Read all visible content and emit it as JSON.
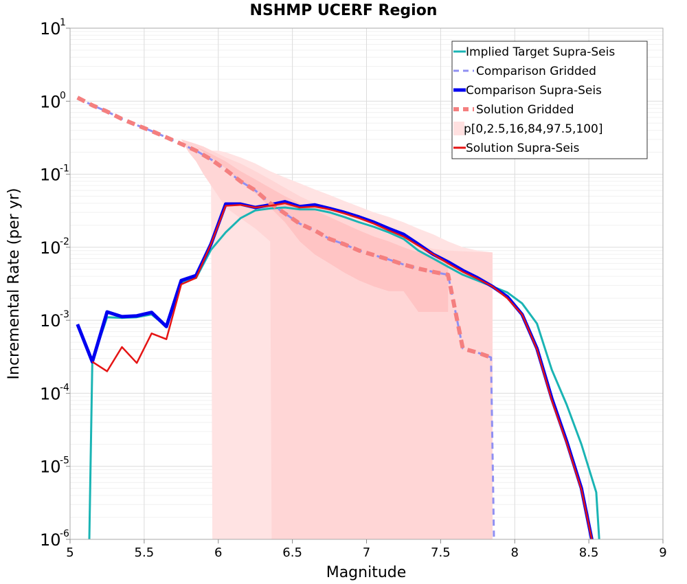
{
  "chart_data": {
    "type": "line",
    "title": "NSHMP UCERF Region",
    "xlabel": "Magnitude",
    "ylabel": "Incremental Rate (per yr)",
    "xlim": [
      5,
      9
    ],
    "ylim": [
      1e-06,
      10
    ],
    "yscale": "log",
    "grid": true,
    "legend_position": "top-right",
    "xticks": [
      5,
      5.5,
      6,
      6.5,
      7,
      7.5,
      8,
      8.5,
      9
    ],
    "xtick_labels": [
      "5",
      "5.5",
      "6",
      "6.5",
      "7",
      "7.5",
      "8",
      "8.5",
      "9"
    ],
    "yticks": [
      {
        "value": 1e-06,
        "base": "10",
        "exp": "-6"
      },
      {
        "value": 1e-05,
        "base": "10",
        "exp": "-5"
      },
      {
        "value": 0.0001,
        "base": "10",
        "exp": "-4"
      },
      {
        "value": 0.001,
        "base": "10",
        "exp": "-3"
      },
      {
        "value": 0.01,
        "base": "10",
        "exp": "-2"
      },
      {
        "value": 0.1,
        "base": "10",
        "exp": "-1"
      },
      {
        "value": 1,
        "base": "10",
        "exp": "0"
      },
      {
        "value": 10,
        "base": "10",
        "exp": "1"
      }
    ],
    "bands": [
      {
        "name": "p[0,2.5,16,84,97.5,100]",
        "level": "outer",
        "color": "#ffe3e3",
        "x": [
          5.05,
          5.15,
          5.25,
          5.35,
          5.45,
          5.55,
          5.65,
          5.75,
          5.85,
          5.95,
          5.96,
          6.0,
          6.05,
          6.15,
          6.25,
          6.35,
          6.45,
          6.55,
          6.65,
          6.75,
          6.85,
          6.95,
          7.05,
          7.15,
          7.25,
          7.35,
          7.45,
          7.55,
          7.65,
          7.75,
          7.85
        ],
        "upper": [
          1.12,
          0.93,
          0.75,
          0.6,
          0.5,
          0.42,
          0.35,
          0.3,
          0.25,
          0.21,
          0.21,
          0.21,
          0.2,
          0.17,
          0.14,
          0.11,
          0.09,
          0.075,
          0.062,
          0.052,
          0.043,
          0.036,
          0.03,
          0.026,
          0.022,
          0.018,
          0.015,
          0.012,
          0.01,
          0.009,
          0.0085
        ],
        "lower": [
          1.12,
          0.93,
          0.75,
          0.6,
          0.5,
          0.42,
          0.35,
          0.3,
          0.25,
          0.19,
          1e-06,
          1e-06,
          1e-06,
          1e-06,
          1e-06,
          1e-06,
          1e-06,
          1e-06,
          1e-06,
          1e-06,
          1e-06,
          1e-06,
          1e-06,
          1e-06,
          1e-06,
          1e-06,
          1e-06,
          1e-06,
          1e-06,
          1e-06,
          1e-06
        ]
      },
      {
        "name": "p[0,2.5,16,84,97.5,100]",
        "level": "middle",
        "color": "#ffd6d6",
        "x": [
          5.05,
          5.15,
          5.25,
          5.35,
          5.45,
          5.55,
          5.65,
          5.75,
          5.8,
          5.85,
          5.9,
          6.0,
          6.05,
          6.15,
          6.25,
          6.35,
          6.36,
          6.45,
          6.55,
          6.65,
          6.75,
          6.85,
          6.95,
          7.05,
          7.15,
          7.25,
          7.35,
          7.45,
          7.55,
          7.56,
          7.65,
          7.75,
          7.85
        ],
        "upper": [
          1.12,
          0.93,
          0.75,
          0.6,
          0.5,
          0.42,
          0.35,
          0.3,
          0.28,
          0.26,
          0.24,
          0.19,
          0.17,
          0.14,
          0.11,
          0.085,
          0.083,
          0.065,
          0.05,
          0.04,
          0.032,
          0.026,
          0.021,
          0.018,
          0.015,
          0.013,
          0.011,
          0.0095,
          0.009,
          0.009,
          0.0088,
          0.0086,
          0.0085
        ],
        "lower": [
          1.12,
          0.93,
          0.75,
          0.6,
          0.5,
          0.42,
          0.35,
          0.3,
          0.2,
          0.15,
          0.1,
          0.05,
          0.035,
          0.025,
          0.018,
          0.012,
          1e-06,
          1e-06,
          1e-06,
          1e-06,
          1e-06,
          1e-06,
          1e-06,
          1e-06,
          1e-06,
          1e-06,
          1e-06,
          1e-06,
          1e-06,
          1e-06,
          1e-06,
          1e-06,
          1e-06
        ]
      },
      {
        "name": "p[0,2.5,16,84,97.5,100]",
        "level": "inner",
        "color": "#ffc4c4",
        "x": [
          5.05,
          5.15,
          5.25,
          5.35,
          5.45,
          5.55,
          5.65,
          5.75,
          5.85,
          5.95,
          6.05,
          6.15,
          6.25,
          6.35,
          6.45,
          6.55,
          6.65,
          6.75,
          6.85,
          6.95,
          7.05,
          7.15,
          7.25,
          7.35,
          7.45,
          7.55
        ],
        "upper": [
          1.12,
          0.93,
          0.75,
          0.6,
          0.5,
          0.42,
          0.35,
          0.3,
          0.24,
          0.19,
          0.15,
          0.11,
          0.085,
          0.065,
          0.05,
          0.04,
          0.032,
          0.026,
          0.021,
          0.017,
          0.014,
          0.012,
          0.01,
          0.0085,
          0.0072,
          0.0065
        ],
        "lower": [
          1.12,
          0.93,
          0.75,
          0.6,
          0.5,
          0.42,
          0.35,
          0.3,
          0.24,
          0.17,
          0.12,
          0.08,
          0.055,
          0.035,
          0.022,
          0.012,
          0.008,
          0.006,
          0.0045,
          0.0035,
          0.0029,
          0.0025,
          0.0025,
          0.0013,
          0.0013,
          0.0013
        ]
      }
    ],
    "series": [
      {
        "name": "Implied Target Supra-Seis",
        "color": "#1ab4b4",
        "dash": "solid",
        "width": 3,
        "x": [
          5.13,
          5.15,
          5.25,
          5.35,
          5.45,
          5.55,
          5.65,
          5.75,
          5.85,
          5.95,
          6.05,
          6.15,
          6.25,
          6.35,
          6.45,
          6.55,
          6.65,
          6.75,
          6.85,
          6.95,
          7.05,
          7.15,
          7.25,
          7.35,
          7.45,
          7.55,
          7.65,
          7.75,
          7.85,
          7.95,
          8.05,
          8.15,
          8.25,
          8.35,
          8.45,
          8.55,
          8.57
        ],
        "y": [
          1e-06,
          0.00028,
          0.0011,
          0.00108,
          0.0011,
          0.0012,
          0.00082,
          0.0033,
          0.0038,
          0.0092,
          0.016,
          0.025,
          0.032,
          0.034,
          0.035,
          0.033,
          0.033,
          0.03,
          0.026,
          0.022,
          0.019,
          0.016,
          0.013,
          0.009,
          0.007,
          0.0054,
          0.0042,
          0.0035,
          0.0029,
          0.0024,
          0.0017,
          0.0009,
          0.00021,
          7e-05,
          2e-05,
          4.4e-06,
          1e-06
        ]
      },
      {
        "name": "Comparison Gridded",
        "color": "#8f8ff2",
        "dash": "dashed",
        "width": 3,
        "x": [
          5.05,
          5.15,
          5.25,
          5.35,
          5.45,
          5.55,
          5.65,
          5.75,
          5.85,
          5.95,
          6.05,
          6.15,
          6.25,
          6.35,
          6.45,
          6.55,
          6.65,
          6.75,
          6.85,
          6.95,
          7.05,
          7.15,
          7.25,
          7.35,
          7.45,
          7.55,
          7.65,
          7.75,
          7.84,
          7.86
        ],
        "y": [
          1.12,
          0.88,
          0.72,
          0.57,
          0.47,
          0.39,
          0.32,
          0.26,
          0.21,
          0.16,
          0.115,
          0.08,
          0.06,
          0.04,
          0.029,
          0.021,
          0.017,
          0.013,
          0.011,
          0.009,
          0.0078,
          0.0068,
          0.0058,
          0.0051,
          0.0046,
          0.0042,
          0.00041,
          0.00036,
          0.00031,
          1e-06
        ]
      },
      {
        "name": "Comparison Supra-Seis",
        "color": "#0000f0",
        "dash": "solid",
        "width": 5,
        "x": [
          5.05,
          5.15,
          5.25,
          5.35,
          5.45,
          5.55,
          5.65,
          5.75,
          5.85,
          5.95,
          6.05,
          6.15,
          6.25,
          6.35,
          6.45,
          6.55,
          6.65,
          6.75,
          6.85,
          6.95,
          7.05,
          7.15,
          7.25,
          7.35,
          7.45,
          7.55,
          7.65,
          7.75,
          7.85,
          7.95,
          8.05,
          8.15,
          8.25,
          8.35,
          8.45,
          8.52
        ],
        "y": [
          0.00088,
          0.00027,
          0.0013,
          0.00112,
          0.00115,
          0.00128,
          0.00082,
          0.0035,
          0.0041,
          0.011,
          0.039,
          0.039,
          0.035,
          0.038,
          0.042,
          0.036,
          0.038,
          0.034,
          0.03,
          0.026,
          0.022,
          0.018,
          0.015,
          0.011,
          0.008,
          0.0063,
          0.0048,
          0.0038,
          0.0029,
          0.0021,
          0.0012,
          0.00041,
          8.5e-05,
          2.2e-05,
          5e-06,
          1e-06
        ]
      },
      {
        "name": "Solution Gridded",
        "color": "#f47f7f",
        "dash": "dashed",
        "width": 6,
        "x": [
          5.05,
          5.15,
          5.25,
          5.35,
          5.45,
          5.55,
          5.65,
          5.75,
          5.85,
          5.95,
          6.05,
          6.15,
          6.25,
          6.35,
          6.45,
          6.55,
          6.65,
          6.75,
          6.85,
          6.95,
          7.05,
          7.15,
          7.25,
          7.35,
          7.45,
          7.55,
          7.65,
          7.75,
          7.84
        ],
        "y": [
          1.12,
          0.88,
          0.72,
          0.57,
          0.47,
          0.39,
          0.32,
          0.26,
          0.21,
          0.16,
          0.115,
          0.08,
          0.06,
          0.04,
          0.029,
          0.021,
          0.017,
          0.013,
          0.011,
          0.009,
          0.0078,
          0.0068,
          0.0058,
          0.0051,
          0.0046,
          0.0042,
          0.00041,
          0.00036,
          0.00031
        ]
      },
      {
        "name": "Solution Supra-Seis",
        "color": "#e51414",
        "dash": "solid",
        "width": 2.5,
        "x": [
          5.15,
          5.25,
          5.35,
          5.45,
          5.55,
          5.65,
          5.75,
          5.85,
          5.95,
          6.05,
          6.15,
          6.25,
          6.35,
          6.45,
          6.55,
          6.65,
          6.75,
          6.85,
          6.95,
          7.05,
          7.15,
          7.25,
          7.35,
          7.45,
          7.55,
          7.65,
          7.75,
          7.85,
          7.95,
          8.05,
          8.15,
          8.25,
          8.35,
          8.45,
          8.52
        ],
        "y": [
          0.00027,
          0.0002,
          0.00043,
          0.00026,
          0.00066,
          0.00055,
          0.0031,
          0.0038,
          0.011,
          0.037,
          0.038,
          0.035,
          0.037,
          0.04,
          0.035,
          0.036,
          0.033,
          0.029,
          0.025,
          0.021,
          0.017,
          0.014,
          0.0105,
          0.008,
          0.006,
          0.0046,
          0.0037,
          0.0029,
          0.002,
          0.0012,
          0.0004,
          8e-05,
          2.1e-05,
          4.8e-06,
          1e-06
        ]
      }
    ],
    "legend": [
      {
        "label": "Implied Target Supra-Seis",
        "color": "#1ab4b4",
        "style": "line",
        "width": 3
      },
      {
        "label": "Comparison Gridded",
        "color": "#8f8ff2",
        "style": "dash",
        "width": 3
      },
      {
        "label": "Comparison Supra-Seis",
        "color": "#0000f0",
        "style": "line",
        "width": 5
      },
      {
        "label": "Solution Gridded",
        "color": "#f47f7f",
        "style": "dash",
        "width": 6
      },
      {
        "label": "p[0,2.5,16,84,97.5,100]",
        "color": "#ffe0e0",
        "style": "block",
        "width": 14
      },
      {
        "label": "Solution Supra-Seis",
        "color": "#e51414",
        "style": "line",
        "width": 3
      }
    ]
  }
}
